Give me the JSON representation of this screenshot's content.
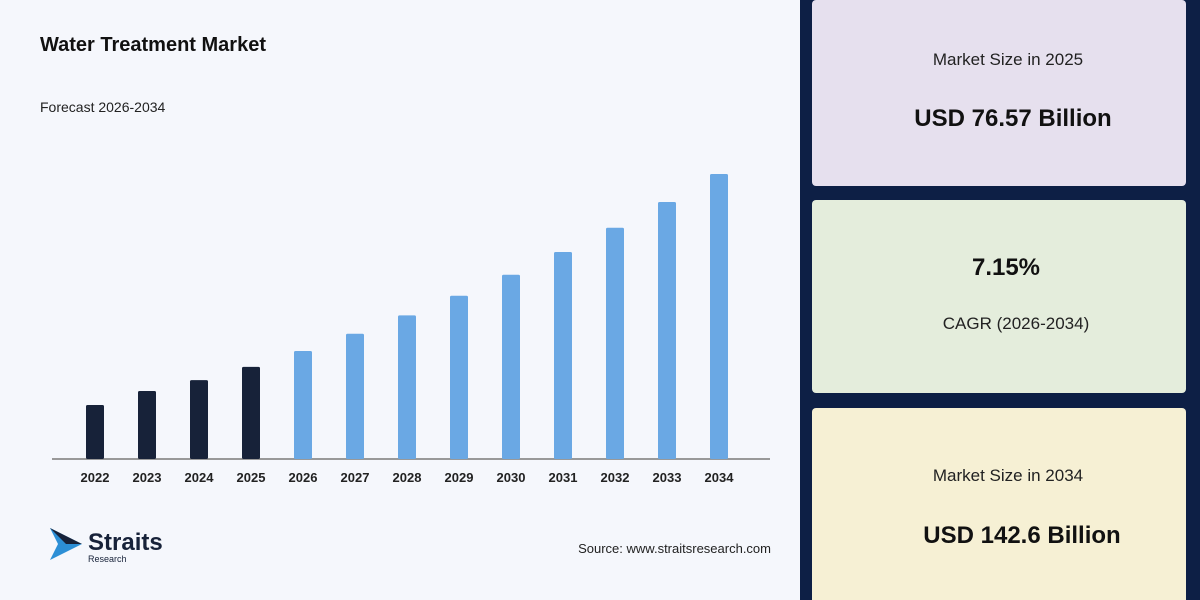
{
  "chart_data": {
    "type": "bar",
    "title": "Water Treatment Market",
    "subtitle": "Forecast 2026-2034",
    "categories": [
      "2022",
      "2023",
      "2024",
      "2025",
      "2026",
      "2027",
      "2028",
      "2029",
      "2030",
      "2031",
      "2032",
      "2033",
      "2034"
    ],
    "values": [
      63.5,
      68.3,
      72.0,
      76.57,
      82.0,
      87.9,
      94.2,
      100.9,
      108.1,
      115.9,
      124.2,
      133.0,
      142.6
    ],
    "colors": [
      "#172239",
      "#172239",
      "#172239",
      "#172239",
      "#6aa8e4",
      "#6aa8e4",
      "#6aa8e4",
      "#6aa8e4",
      "#6aa8e4",
      "#6aa8e4",
      "#6aa8e4",
      "#6aa8e4",
      "#6aa8e4"
    ],
    "ylim": [
      45,
      145
    ]
  },
  "logo": {
    "name": "Straits",
    "tagline": "Research"
  },
  "source": "Source: www.straitsresearch.com",
  "cards": [
    {
      "label": "Market Size in 2025",
      "value": "USD 76.57 Billion"
    },
    {
      "value": "7.15%",
      "label": "CAGR (2026-2034)"
    },
    {
      "label": "Market Size in 2034",
      "value": "USD 142.6 Billion"
    }
  ]
}
